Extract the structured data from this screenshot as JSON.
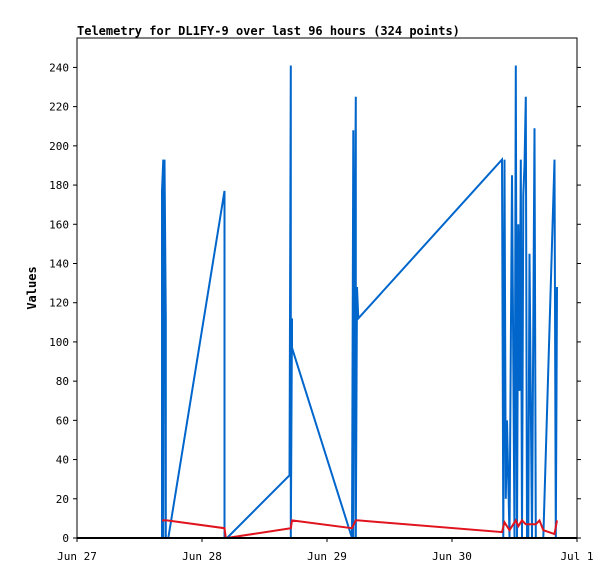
{
  "chart_data": {
    "type": "line",
    "title": "Telemetry for DL1FY-9 over last 96 hours (324 points)",
    "xlabel": "",
    "ylabel": "Values",
    "x_tick_labels": [
      "Jun 27",
      "Jun 28",
      "Jun 29",
      "Jun 30",
      "Jul 1"
    ],
    "x_range_days": [
      0,
      4
    ],
    "ylim": [
      0,
      255
    ],
    "y_ticks": [
      0,
      20,
      40,
      60,
      80,
      100,
      120,
      140,
      160,
      180,
      200,
      220,
      240
    ],
    "grid": false,
    "legend": "none",
    "series": [
      {
        "color": "#0066cc",
        "x": [
          0.68,
          0.68,
          0.69,
          0.69,
          0.7,
          0.71,
          0.71,
          0.72,
          0.73,
          1.18,
          1.18,
          1.19,
          1.2,
          1.7,
          1.71,
          1.71,
          1.72,
          1.72,
          2.2,
          2.21,
          2.21,
          2.22,
          2.23,
          2.23,
          2.24,
          2.25,
          3.4,
          3.41,
          3.42,
          3.43,
          3.44,
          3.46,
          3.48,
          3.5,
          3.51,
          3.52,
          3.53,
          3.54,
          3.55,
          3.56,
          3.57,
          3.58,
          3.59,
          3.6,
          3.61,
          3.62,
          3.64,
          3.66,
          3.67,
          3.68,
          3.69,
          3.7,
          3.72,
          3.73,
          3.82,
          3.83,
          3.84
        ],
        "y": [
          0,
          177,
          193,
          0,
          193,
          112,
          0,
          0,
          0,
          177,
          0,
          0,
          0,
          32,
          241,
          0,
          112,
          97,
          0,
          208,
          0,
          120,
          225,
          0,
          128,
          112,
          193,
          0,
          193,
          20,
          60,
          0,
          185,
          0,
          241,
          0,
          160,
          75,
          193,
          0,
          175,
          190,
          225,
          0,
          0,
          145,
          0,
          209,
          0,
          0,
          0,
          0,
          0,
          0,
          193,
          0,
          128
        ]
      },
      {
        "color": "#e0141e",
        "x": [
          0.68,
          0.71,
          0.72,
          1.18,
          1.19,
          1.2,
          1.71,
          1.72,
          2.2,
          2.23,
          2.25,
          3.4,
          3.42,
          3.46,
          3.51,
          3.53,
          3.56,
          3.59,
          3.61,
          3.64,
          3.67,
          3.7,
          3.73,
          3.82,
          3.84
        ],
        "y": [
          9,
          9,
          9,
          5,
          0,
          0,
          5,
          9,
          5,
          9,
          9,
          3,
          8,
          4,
          9,
          6,
          9,
          7,
          7,
          7,
          7,
          9,
          4,
          2,
          9
        ]
      },
      {
        "color": "#000000",
        "x": [
          0,
          0.68,
          1.18,
          1.71,
          2.2,
          3.4,
          3.84,
          4.0
        ],
        "y": [
          0,
          0,
          0,
          0,
          0,
          0,
          0,
          0
        ]
      }
    ]
  }
}
